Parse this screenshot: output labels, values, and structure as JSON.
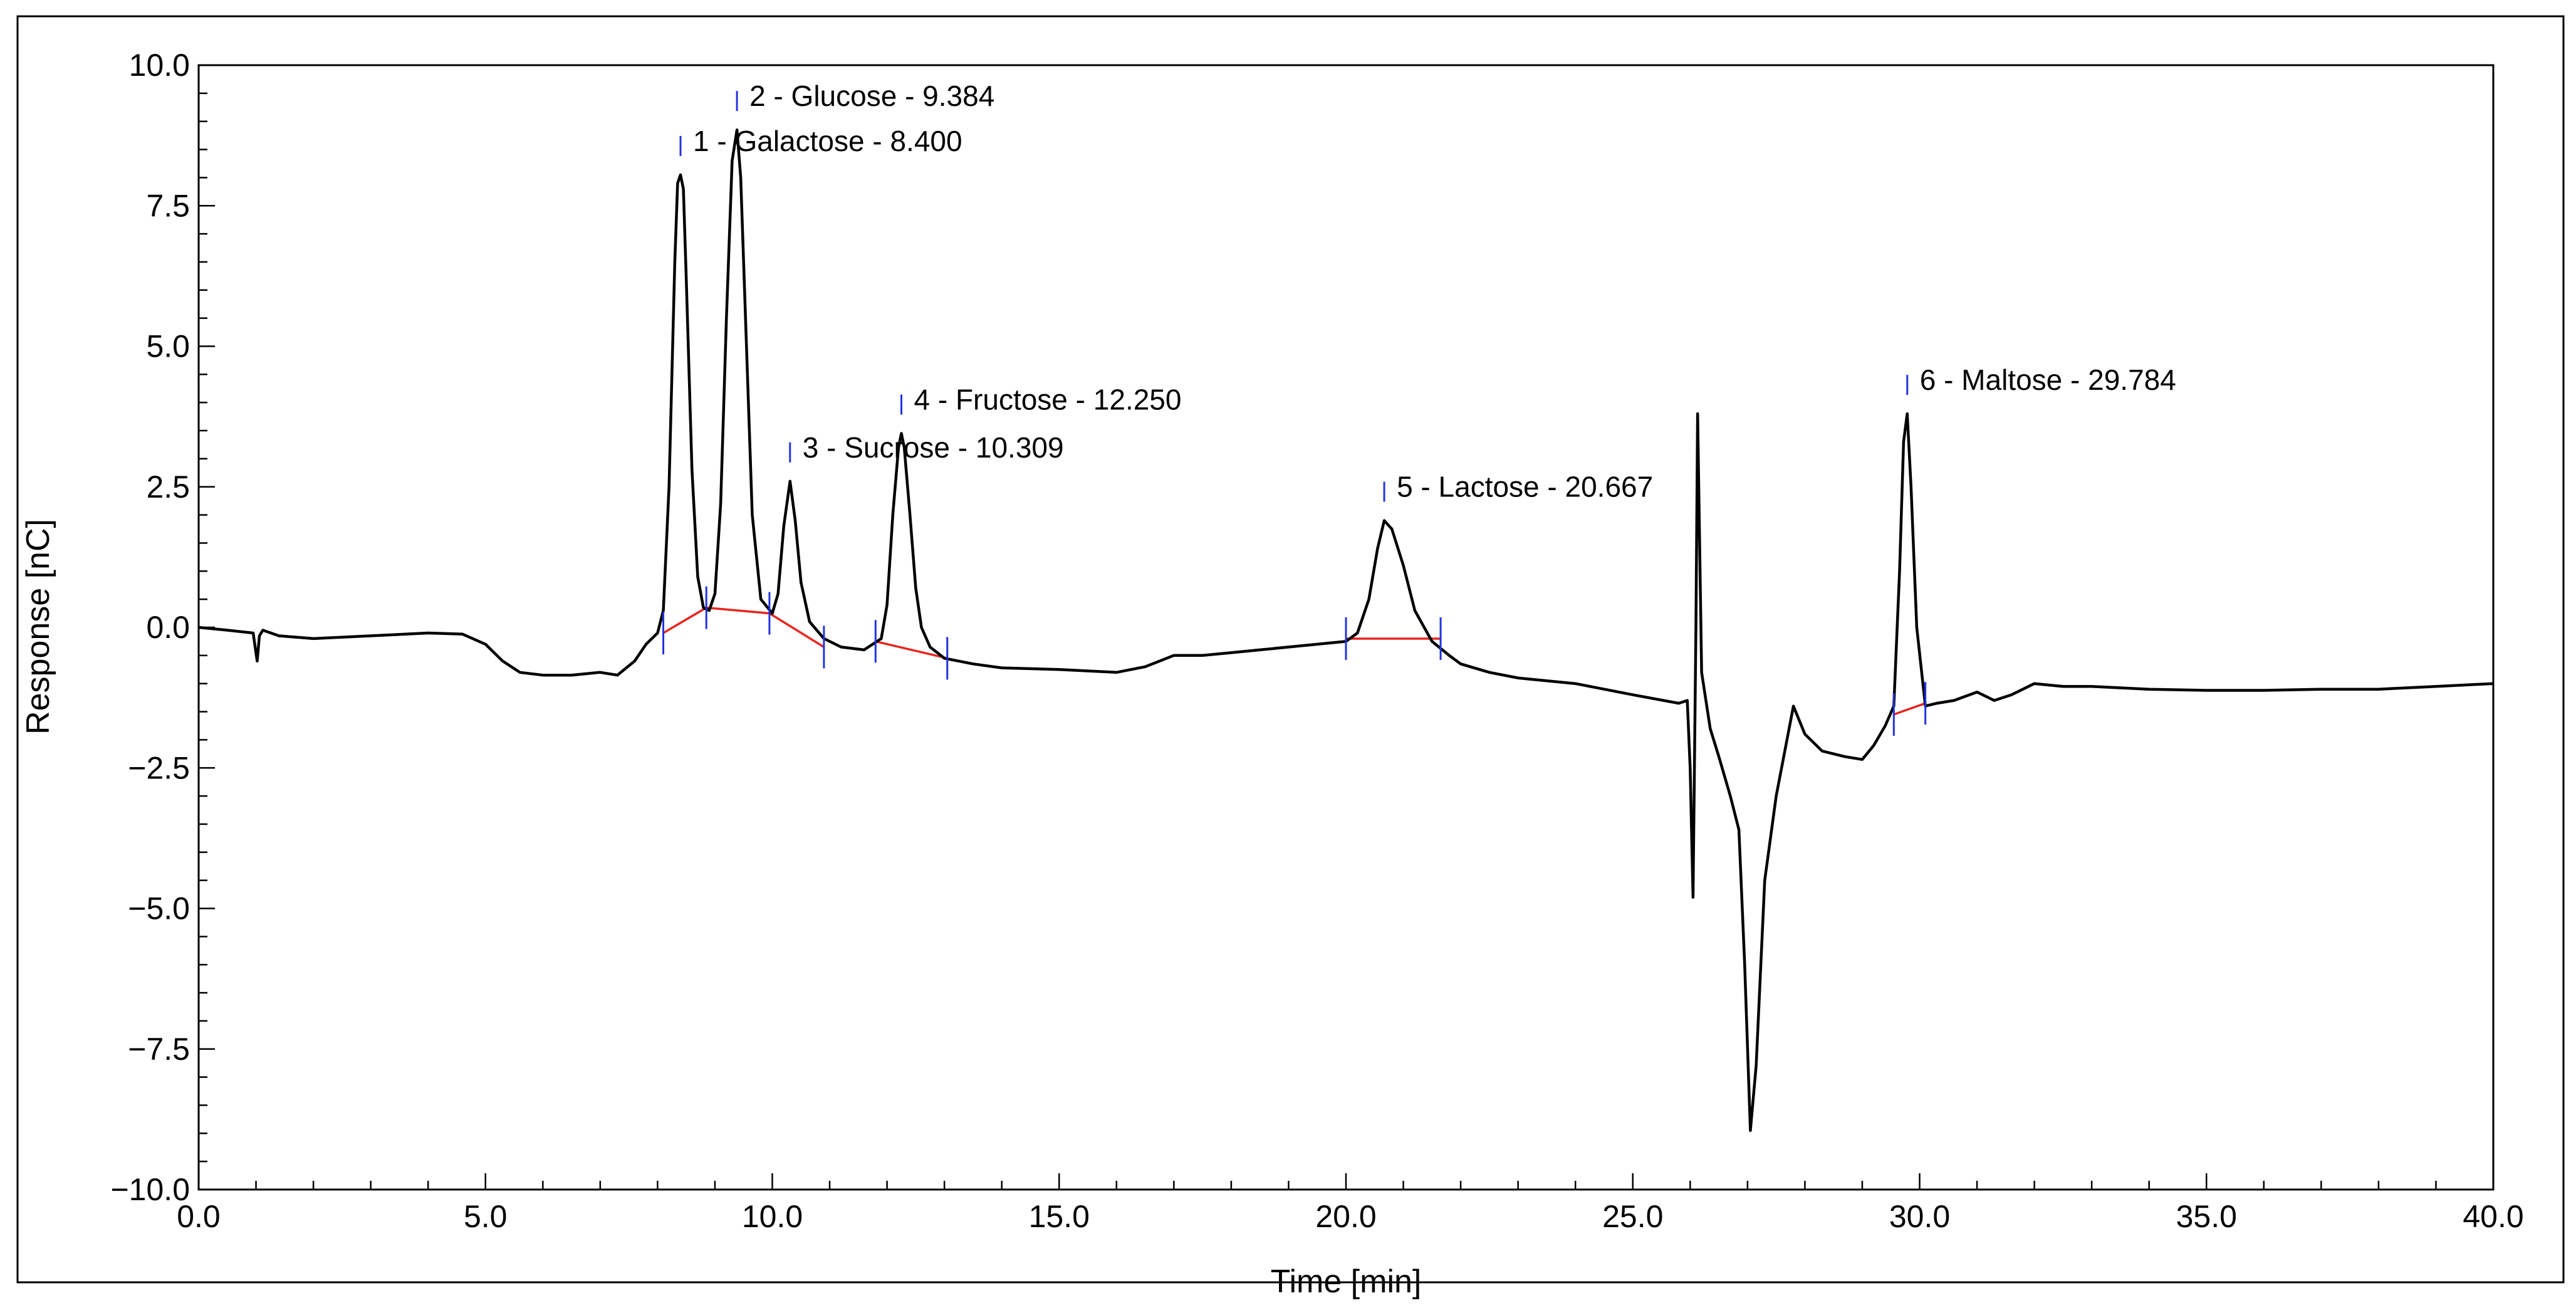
{
  "chart_data": {
    "type": "line",
    "title": "",
    "xlabel": "Time [min]",
    "ylabel": "Response [nC]",
    "xlim": [
      0,
      40
    ],
    "ylim": [
      -10,
      10
    ],
    "grid": false,
    "legend": "none",
    "x_ticks": [
      {
        "value": 0,
        "label": "0.0"
      },
      {
        "value": 5,
        "label": "5.0"
      },
      {
        "value": 10,
        "label": "10.0"
      },
      {
        "value": 15,
        "label": "15.0"
      },
      {
        "value": 20,
        "label": "20.0"
      },
      {
        "value": 25,
        "label": "25.0"
      },
      {
        "value": 30,
        "label": "30.0"
      },
      {
        "value": 35,
        "label": "35.0"
      },
      {
        "value": 40,
        "label": "40.0"
      }
    ],
    "y_ticks": [
      {
        "value": 10,
        "label": "10.0"
      },
      {
        "value": 7.5,
        "label": "7.5"
      },
      {
        "value": 5,
        "label": "5.0"
      },
      {
        "value": 2.5,
        "label": "2.5"
      },
      {
        "value": 0,
        "label": "0.0"
      },
      {
        "value": -2.5,
        "label": "−2.5"
      },
      {
        "value": -5,
        "label": "−5.0"
      },
      {
        "value": -7.5,
        "label": "−7.5"
      },
      {
        "value": -10,
        "label": "−10.0"
      }
    ],
    "colors": {
      "trace": "#000000",
      "baseline": "#e8251f",
      "marker": "#2233dd"
    },
    "series": [
      {
        "x": [
          0,
          0.5,
          0.95,
          1.02,
          1.06,
          1.12,
          1.4,
          2.0,
          3.0,
          4.0,
          4.6,
          5.0,
          5.3,
          5.6,
          6.0,
          6.5,
          7.0,
          7.3,
          7.6,
          7.8,
          8.0,
          8.1,
          8.2,
          8.3,
          8.35,
          8.4,
          8.45,
          8.5,
          8.6,
          8.7,
          8.8,
          8.9,
          9.0,
          9.1,
          9.2,
          9.3,
          9.384,
          9.45,
          9.55,
          9.65,
          9.8,
          10.0,
          10.1,
          10.2,
          10.309,
          10.4,
          10.5,
          10.65,
          10.9,
          11.2,
          11.6,
          11.9,
          12.0,
          12.1,
          12.2,
          12.25,
          12.3,
          12.4,
          12.5,
          12.6,
          12.75,
          13.0,
          13.5,
          14.0,
          15.0,
          16.0,
          16.5,
          17.0,
          17.5,
          18.0,
          18.5,
          19.0,
          19.5,
          20.0,
          20.2,
          20.4,
          20.55,
          20.667,
          20.8,
          21.0,
          21.2,
          21.5,
          21.8,
          22.0,
          22.5,
          23.0,
          24.0,
          25.0,
          25.8,
          25.95,
          26.0,
          26.05,
          26.1,
          26.13,
          26.2,
          26.35,
          26.5,
          26.7,
          26.85,
          26.95,
          27.05,
          27.15,
          27.3,
          27.5,
          27.8,
          28.0,
          28.3,
          28.7,
          29.0,
          29.2,
          29.4,
          29.55,
          29.65,
          29.72,
          29.784,
          29.85,
          29.95,
          30.1,
          30.3,
          30.6,
          31.0,
          31.3,
          31.6,
          32.0,
          32.5,
          33.0,
          34.0,
          35.0,
          36.0,
          37.0,
          38.0,
          39.0,
          40.0
        ],
        "y": [
          0.0,
          -0.05,
          -0.1,
          -0.6,
          -0.15,
          -0.05,
          -0.15,
          -0.2,
          -0.15,
          -0.1,
          -0.12,
          -0.3,
          -0.6,
          -0.8,
          -0.85,
          -0.85,
          -0.8,
          -0.85,
          -0.6,
          -0.3,
          -0.1,
          0.3,
          2.5,
          6.5,
          7.9,
          8.05,
          7.8,
          6.2,
          2.8,
          0.9,
          0.35,
          0.3,
          0.6,
          2.2,
          5.5,
          8.3,
          8.85,
          8.0,
          5.0,
          2.0,
          0.5,
          0.25,
          0.6,
          1.8,
          2.6,
          1.9,
          0.8,
          0.1,
          -0.2,
          -0.35,
          -0.4,
          -0.2,
          0.4,
          2.0,
          3.2,
          3.45,
          3.2,
          2.0,
          0.7,
          0.0,
          -0.35,
          -0.55,
          -0.65,
          -0.72,
          -0.75,
          -0.8,
          -0.7,
          -0.5,
          -0.5,
          -0.45,
          -0.4,
          -0.35,
          -0.3,
          -0.25,
          -0.1,
          0.5,
          1.4,
          1.9,
          1.75,
          1.1,
          0.3,
          -0.25,
          -0.5,
          -0.65,
          -0.8,
          -0.9,
          -1.0,
          -1.2,
          -1.35,
          -1.3,
          -2.5,
          -4.8,
          0.0,
          3.8,
          -0.8,
          -1.8,
          -2.3,
          -3.0,
          -3.6,
          -6.0,
          -8.95,
          -7.8,
          -4.5,
          -3.0,
          -1.4,
          -1.9,
          -2.2,
          -2.3,
          -2.35,
          -2.1,
          -1.75,
          -1.4,
          1.0,
          3.3,
          3.8,
          2.5,
          0.0,
          -1.4,
          -1.35,
          -1.3,
          -1.15,
          -1.3,
          -1.2,
          -1.0,
          -1.05,
          -1.05,
          -1.1,
          -1.12,
          -1.12,
          -1.1,
          -1.1,
          -1.05,
          -1.0
        ]
      }
    ],
    "peaks": [
      {
        "num": 1,
        "name": "Galactose",
        "time": 8.4,
        "height": 8.05,
        "label": "1 - Galactose - 8.400"
      },
      {
        "num": 2,
        "name": "Glucose",
        "time": 9.384,
        "height": 8.85,
        "label": "2 - Glucose - 9.384"
      },
      {
        "num": 3,
        "name": "Sucrose",
        "time": 10.309,
        "height": 2.6,
        "label": "3 - Sucrose - 10.309"
      },
      {
        "num": 4,
        "name": "Fructose",
        "time": 12.25,
        "height": 3.45,
        "label": "4 - Fructose - 12.250"
      },
      {
        "num": 5,
        "name": "Lactose",
        "time": 20.667,
        "height": 1.9,
        "label": "5 - Lactose - 20.667"
      },
      {
        "num": 6,
        "name": "Maltose",
        "time": 29.784,
        "height": 3.8,
        "label": "6 - Maltose - 29.784"
      }
    ],
    "baselines": [
      {
        "x": [
          8.1,
          8.85,
          9.95,
          10.9
        ],
        "y": [
          -0.1,
          0.35,
          0.25,
          -0.35
        ]
      },
      {
        "x": [
          11.8,
          13.05
        ],
        "y": [
          -0.25,
          -0.55
        ]
      },
      {
        "x": [
          20.0,
          21.65
        ],
        "y": [
          -0.2,
          -0.2
        ]
      },
      {
        "x": [
          29.55,
          30.1
        ],
        "y": [
          -1.55,
          -1.35
        ]
      }
    ],
    "boundary_markers": [
      {
        "x": 8.1,
        "y": -0.1
      },
      {
        "x": 8.85,
        "y": 0.35
      },
      {
        "x": 9.95,
        "y": 0.25
      },
      {
        "x": 10.9,
        "y": -0.35
      },
      {
        "x": 11.8,
        "y": -0.25
      },
      {
        "x": 13.05,
        "y": -0.55
      },
      {
        "x": 20.0,
        "y": -0.2
      },
      {
        "x": 21.65,
        "y": -0.2
      },
      {
        "x": 29.55,
        "y": -1.55
      },
      {
        "x": 30.1,
        "y": -1.35
      }
    ]
  }
}
